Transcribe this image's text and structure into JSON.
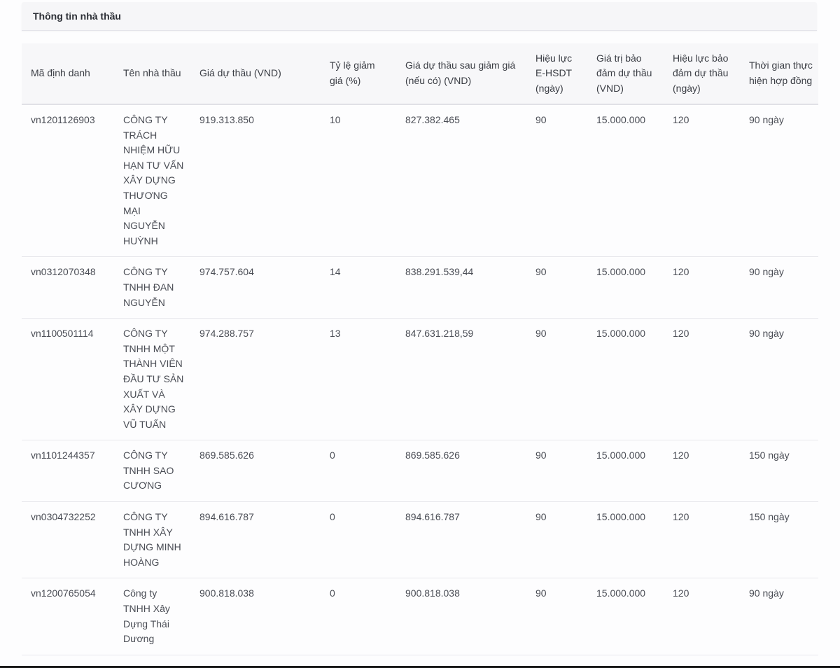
{
  "panel": {
    "title": "Thông tin nhà thầu"
  },
  "table": {
    "headers": [
      "Mã định danh",
      "Tên nhà thầu",
      "Giá dự thầu (VND)",
      "Tỷ lệ giảm giá (%)",
      "Giá dự thầu sau giảm giá (nếu có) (VND)",
      "Hiệu lực E-HSDT (ngày)",
      "Giá trị bảo đảm dự thầu (VND)",
      "Hiệu lực bảo đảm dự thầu (ngày)",
      "Thời gian thực hiện hợp đồng"
    ],
    "rows": [
      [
        "vn1201126903",
        "CÔNG TY TRÁCH NHIỆM HỮU HẠN TƯ VẤN XÂY DỰNG THƯƠNG MẠI NGUYỄN HUỲNH",
        "919.313.850",
        "10",
        "827.382.465",
        "90",
        "15.000.000",
        "120",
        "90 ngày"
      ],
      [
        "vn0312070348",
        "CÔNG TY TNHH ĐAN NGUYỄN",
        "974.757.604",
        "14",
        "838.291.539,44",
        "90",
        "15.000.000",
        "120",
        "90 ngày"
      ],
      [
        "vn1100501114",
        "CÔNG TY TNHH MỘT THÀNH VIÊN ĐẦU TƯ SẢN XUẤT VÀ XÂY DỰNG VŨ TUẤN",
        "974.288.757",
        "13",
        "847.631.218,59",
        "90",
        "15.000.000",
        "120",
        "90 ngày"
      ],
      [
        "vn1101244357",
        "CÔNG TY TNHH SAO CƯƠNG",
        "869.585.626",
        "0",
        "869.585.626",
        "90",
        "15.000.000",
        "120",
        "150 ngày"
      ],
      [
        "vn0304732252",
        "CÔNG TY TNHH XÂY DỰNG MINH HOÀNG",
        "894.616.787",
        "0",
        "894.616.787",
        "90",
        "15.000.000",
        "120",
        "150 ngày"
      ],
      [
        "vn1200765054",
        "Công ty TNHH Xây Dựng Thái Dương",
        "900.818.038",
        "0",
        "900.818.038",
        "90",
        "15.000.000",
        "120",
        "90 ngày"
      ]
    ]
  }
}
